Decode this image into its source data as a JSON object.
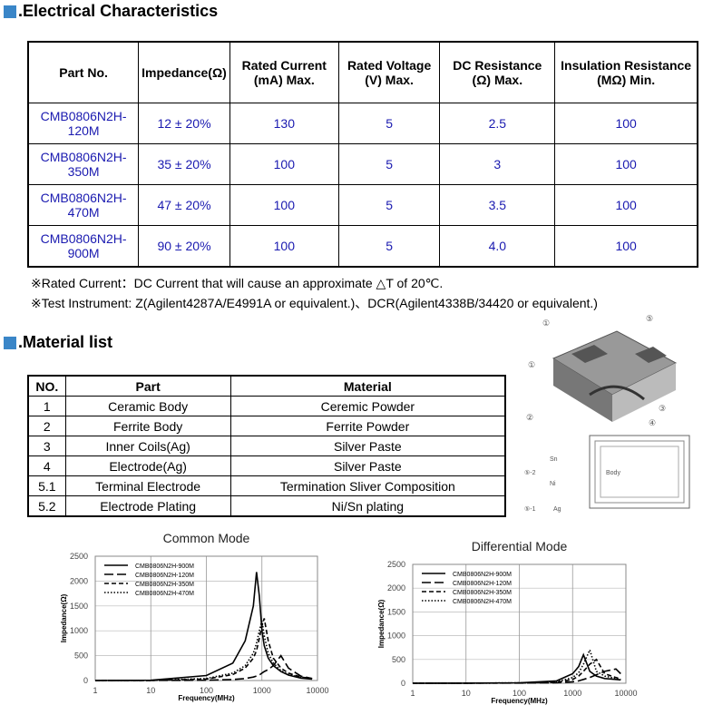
{
  "electrical": {
    "title": "Electrical Characteristics",
    "headers": [
      "Part No.",
      "Impedance(Ω)",
      "Rated Current (mA) Max.",
      "Rated Voltage (V) Max.",
      "DC Resistance (Ω) Max.",
      "Insulation Resistance (MΩ) Min."
    ],
    "rows": [
      [
        "CMB0806N2H-120M",
        "12 ± 20%",
        "130",
        "5",
        "2.5",
        "100"
      ],
      [
        "CMB0806N2H-350M",
        "35 ± 20%",
        "100",
        "5",
        "3",
        "100"
      ],
      [
        "CMB0806N2H-470M",
        "47 ± 20%",
        "100",
        "5",
        "3.5",
        "100"
      ],
      [
        "CMB0806N2H-900M",
        "90 ± 20%",
        "100",
        "5",
        "4.0",
        "100"
      ]
    ],
    "notes": [
      "※Rated Current：DC Current that will cause an approximate △T of 20℃.",
      "※Test Instrument: Z(Agilent4287A/E4991A or equivalent.)、DCR(Agilent4338B/34420 or equivalent.)"
    ]
  },
  "material": {
    "title": "Material list",
    "headers": [
      "NO.",
      "Part",
      "Material"
    ],
    "rows": [
      [
        "1",
        "Ceramic Body",
        "Ceremic Powder"
      ],
      [
        "2",
        "Ferrite Body",
        "Ferrite Powder"
      ],
      [
        "3",
        "Inner Coils(Ag)",
        "Silver Paste"
      ],
      [
        "4",
        "Electrode(Ag)",
        "Silver Paste"
      ],
      [
        "5.1",
        "Terminal Electrode",
        "Termination Sliver Composition"
      ],
      [
        "5.2",
        "Electrode Plating",
        "Ni/Sn plating"
      ]
    ]
  },
  "diagram": {
    "labels": [
      "①",
      "⑤",
      "①",
      "②",
      "③",
      "④"
    ],
    "layer_labels": [
      "Sn",
      "Ni",
      "Ag",
      "Body",
      "⑤-2",
      "⑤-1"
    ]
  },
  "chart_data": [
    {
      "type": "line",
      "title": "Common Mode",
      "xlabel": "Frequency(MHz)",
      "ylabel": "Impedance(Ω)",
      "xscale": "log",
      "x": [
        1,
        10,
        100,
        300,
        500,
        700,
        800,
        900,
        1000,
        1100,
        1300,
        1600,
        2200,
        3000,
        5000,
        8000
      ],
      "xlim": [
        1,
        10000
      ],
      "xticks": [
        1,
        10,
        100,
        1000,
        10000
      ],
      "ylim": [
        0,
        2500
      ],
      "yticks": [
        0,
        500,
        1000,
        1500,
        2000,
        2500
      ],
      "grid": true,
      "legend": "upper left",
      "series": [
        {
          "name": "CMB0806N2H-900M",
          "color": "#000000",
          "style": "solid",
          "values": [
            0,
            5,
            100,
            350,
            800,
            1500,
            2180,
            1700,
            1000,
            700,
            450,
            300,
            180,
            110,
            50,
            30
          ]
        },
        {
          "name": "CMB0806N2H-120M",
          "color": "#000000",
          "style": "longdash",
          "values": [
            0,
            1,
            5,
            20,
            40,
            70,
            90,
            110,
            150,
            180,
            220,
            300,
            500,
            250,
            90,
            40
          ]
        },
        {
          "name": "CMB0806N2H-350M",
          "color": "#000000",
          "style": "dash",
          "values": [
            0,
            2,
            30,
            120,
            250,
            450,
            600,
            850,
            1100,
            1250,
            800,
            450,
            250,
            150,
            70,
            40
          ]
        },
        {
          "name": "CMB0806N2H-470M",
          "color": "#000000",
          "style": "dot",
          "values": [
            0,
            2,
            40,
            150,
            300,
            550,
            750,
            1000,
            1200,
            900,
            550,
            350,
            200,
            120,
            60,
            30
          ]
        }
      ]
    },
    {
      "type": "line",
      "title": "Differential Mode",
      "xlabel": "Frequency(MHz)",
      "ylabel": "Impedance(Ω)",
      "xscale": "log",
      "x": [
        1,
        10,
        100,
        500,
        1000,
        1300,
        1600,
        2100,
        2800,
        4000,
        6500,
        8000
      ],
      "xlim": [
        1,
        10000
      ],
      "xticks": [
        1,
        10,
        100,
        1000,
        10000
      ],
      "ylim": [
        0,
        2500
      ],
      "yticks": [
        0,
        500,
        1000,
        1500,
        2000,
        2500
      ],
      "grid": true,
      "legend": "upper left",
      "series": [
        {
          "name": "CMB0806N2H-900M",
          "color": "#000000",
          "style": "solid",
          "values": [
            0,
            2,
            10,
            50,
            200,
            350,
            600,
            250,
            150,
            100,
            80,
            70
          ]
        },
        {
          "name": "CMB0806N2H-120M",
          "color": "#000000",
          "style": "longdash",
          "values": [
            0,
            1,
            3,
            10,
            30,
            50,
            80,
            120,
            180,
            250,
            300,
            200
          ]
        },
        {
          "name": "CMB0806N2H-350M",
          "color": "#000000",
          "style": "dash",
          "values": [
            0,
            1,
            5,
            20,
            80,
            150,
            250,
            400,
            500,
            200,
            120,
            90
          ]
        },
        {
          "name": "CMB0806N2H-470M",
          "color": "#000000",
          "style": "dot",
          "values": [
            0,
            2,
            8,
            30,
            120,
            220,
            400,
            700,
            250,
            150,
            100,
            80
          ]
        }
      ]
    }
  ]
}
